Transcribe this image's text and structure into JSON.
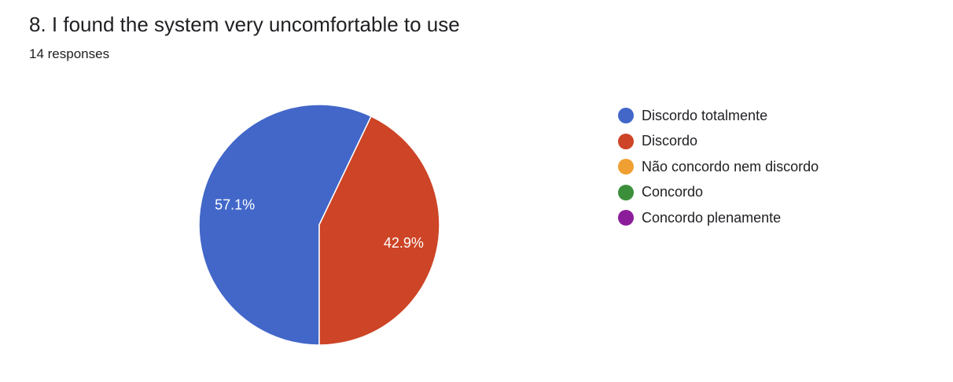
{
  "question": {
    "title": "8. I found the system very uncomfortable to use",
    "responses": "14 responses"
  },
  "chart_data": {
    "type": "pie",
    "categories": [
      "Discordo totalmente",
      "Discordo",
      "Não concordo nem discordo",
      "Concordo",
      "Concordo plenamente"
    ],
    "values": [
      57.1,
      42.9,
      0,
      0,
      0
    ],
    "data_labels": [
      "57.1%",
      "42.9%",
      "",
      "",
      ""
    ],
    "colors": [
      "#4267c9",
      "#cd4426",
      "#f0a033",
      "#3b8f3b",
      "#8c1d9a"
    ],
    "legend_position": "right"
  }
}
